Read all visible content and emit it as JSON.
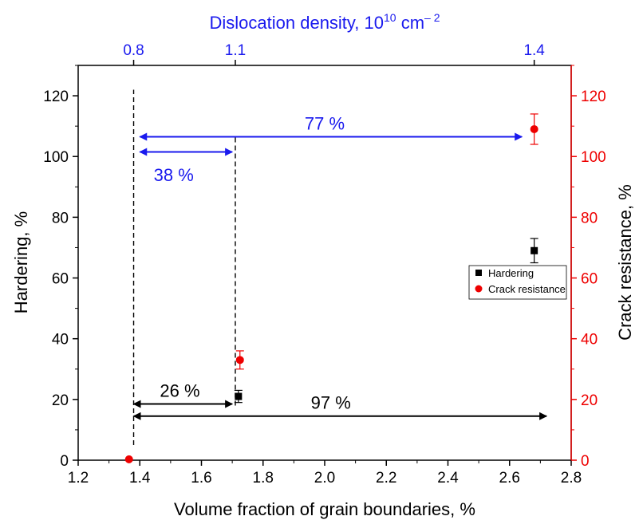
{
  "chart_data": {
    "type": "scatter",
    "title": "",
    "xlabel": "Volume fraction of grain boundaries, %",
    "xlim": [
      1.2,
      2.8
    ],
    "xticks": [
      "1.2",
      "1.4",
      "1.6",
      "1.8",
      "2.0",
      "2.2",
      "2.4",
      "2.6",
      "2.8"
    ],
    "ylabel_left": "Hardering, %",
    "ylim_left": [
      0,
      130
    ],
    "yticks_left": [
      "0",
      "20",
      "40",
      "60",
      "80",
      "100",
      "120"
    ],
    "ylabel_right": "Crack resistance, %",
    "ylim_right": [
      0,
      130
    ],
    "yticks_right": [
      "0",
      "20",
      "40",
      "60",
      "80",
      "100",
      "120"
    ],
    "top_axis": {
      "label_main": "Dislocation density, 10",
      "label_sup1": "10",
      "label_unit": " cm",
      "label_sup2": "– 2",
      "ticks": [
        {
          "x": 1.38,
          "label": "0.8"
        },
        {
          "x": 1.71,
          "label": "1.1"
        },
        {
          "x": 2.68,
          "label": "1.4"
        }
      ]
    },
    "series": [
      {
        "name": "Hardering",
        "axis": "left",
        "marker": "square",
        "color": "#000000",
        "points": [
          {
            "x": 1.72,
            "y": 21,
            "err": 2
          },
          {
            "x": 2.68,
            "y": 69,
            "err": 4
          }
        ]
      },
      {
        "name": "Crack resistance",
        "axis": "right",
        "marker": "circle",
        "color": "#ee0000",
        "points": [
          {
            "x": 1.365,
            "y": 0.3,
            "err": 0
          },
          {
            "x": 1.725,
            "y": 33,
            "err": 3
          },
          {
            "x": 2.68,
            "y": 109,
            "err": 5
          }
        ]
      }
    ],
    "reference_lines": [
      {
        "x": 1.38,
        "y_from": 5,
        "y_to": 122
      },
      {
        "x": 1.71,
        "y_from": 18,
        "y_to": 107
      }
    ],
    "annotations": [
      {
        "text": "77 %",
        "color": "#1a1aee",
        "x1": 1.4,
        "x2": 2.64,
        "y": 106.5,
        "tx": 2.0,
        "ty": 111
      },
      {
        "text": "38 %",
        "color": "#1a1aee",
        "x1": 1.4,
        "x2": 1.7,
        "y": 101.5,
        "tx": 1.51,
        "ty": 94
      },
      {
        "text": "26 %",
        "color": "#000000",
        "x1": 1.38,
        "x2": 1.7,
        "y": 18.5,
        "tx": 1.53,
        "ty": 23
      },
      {
        "text": "97 %",
        "color": "#000000",
        "x1": 1.38,
        "x2": 2.72,
        "y": 14.5,
        "tx": 2.02,
        "ty": 19
      }
    ],
    "legend": {
      "position": "center-right"
    },
    "colors": {
      "left_axis": "#000000",
      "right_axis": "#ee0000",
      "top_axis": "#1a1aee"
    }
  }
}
